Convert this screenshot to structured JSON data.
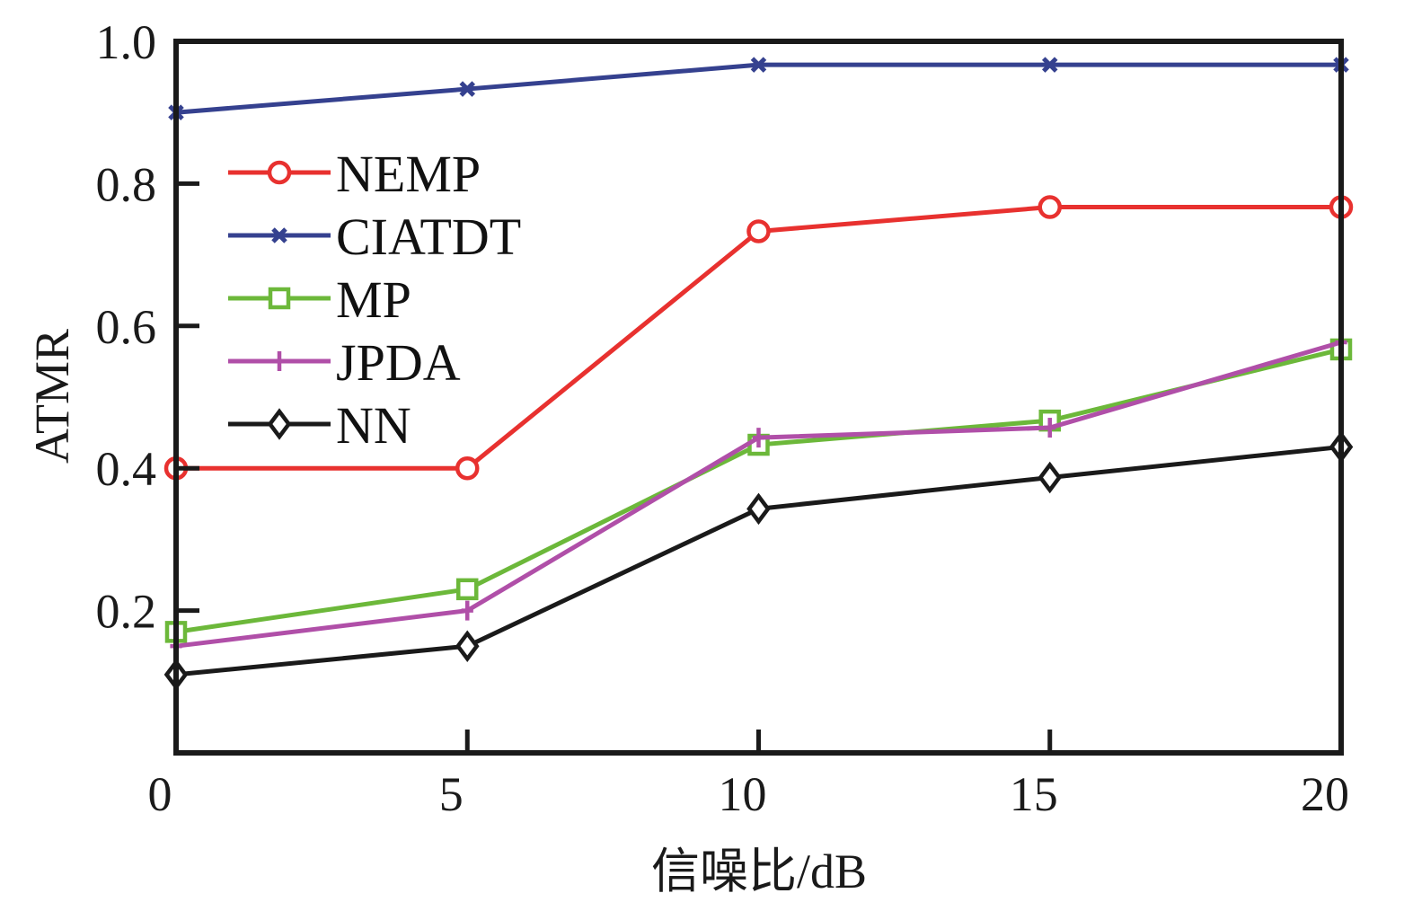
{
  "chart_data": {
    "type": "line",
    "title": "",
    "xlabel": "信噪比/dB",
    "ylabel": "ATMR",
    "x": [
      0,
      5,
      10,
      15,
      20
    ],
    "xlim": [
      0,
      20
    ],
    "ylim": [
      0,
      1.0
    ],
    "xticks": [
      0,
      5,
      10,
      15,
      20
    ],
    "xtick_labels": [
      "0",
      "5",
      "10",
      "15",
      "20"
    ],
    "yticks": [
      0.2,
      0.4,
      0.6,
      0.8,
      1.0
    ],
    "ytick_labels": [
      "0.2",
      "0.4",
      "0.6",
      "0.8",
      "1.0"
    ],
    "grid": false,
    "legend_position": "upper-left",
    "series": [
      {
        "name": "NEMP",
        "color": "#e8312f",
        "marker": "circle",
        "values": [
          0.4,
          0.4,
          0.733,
          0.767,
          0.767
        ]
      },
      {
        "name": "CIATDT",
        "color": "#35418f",
        "marker": "x",
        "values": [
          0.9,
          0.933,
          0.967,
          0.967,
          0.967
        ]
      },
      {
        "name": "MP",
        "color": "#6cb83a",
        "marker": "square",
        "values": [
          0.17,
          0.23,
          0.433,
          0.467,
          0.567
        ]
      },
      {
        "name": "JPDA",
        "color": "#b04fa8",
        "marker": "plus",
        "values": [
          0.15,
          0.2,
          0.443,
          0.457,
          0.577
        ]
      },
      {
        "name": "NN",
        "color": "#1a1a1a",
        "marker": "diamond",
        "values": [
          0.11,
          0.15,
          0.343,
          0.387,
          0.43
        ]
      }
    ]
  }
}
